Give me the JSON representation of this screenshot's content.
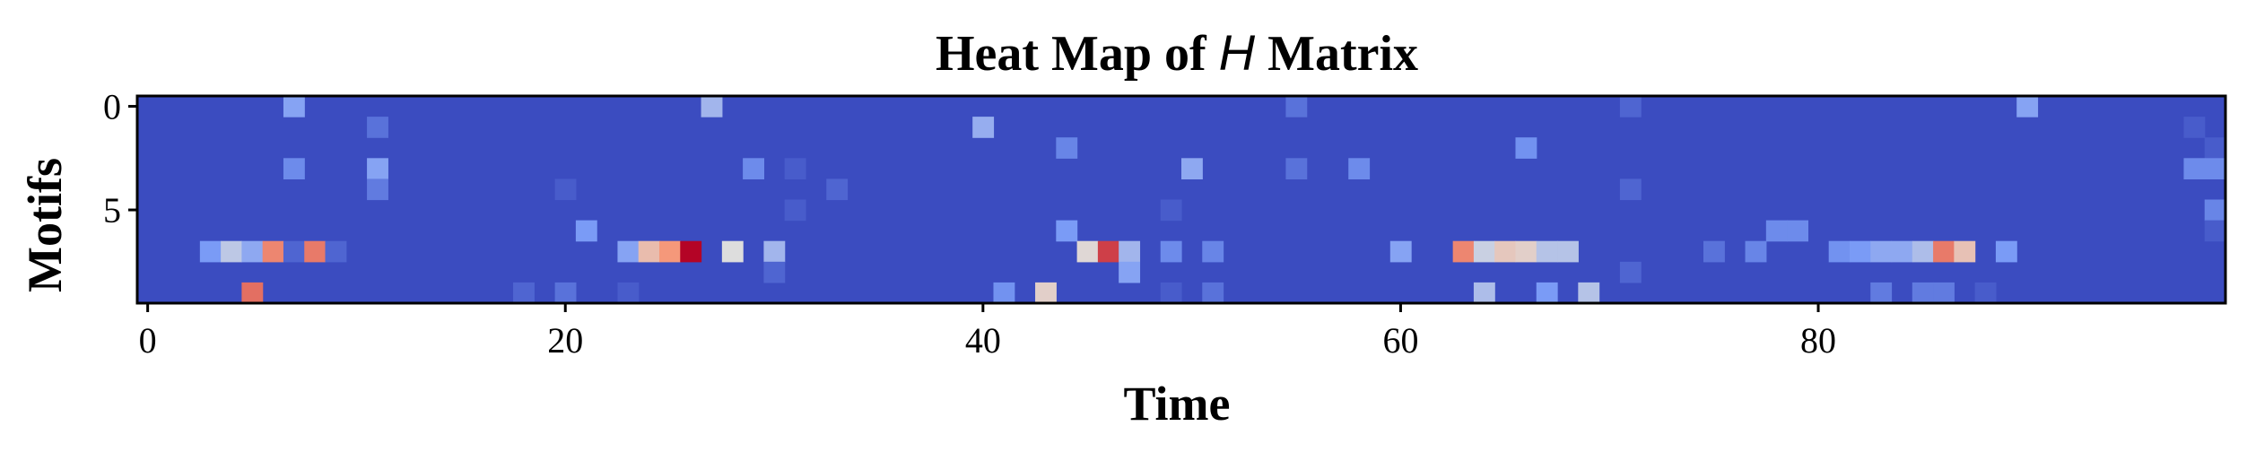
{
  "chart_data": {
    "type": "heatmap",
    "title_main": "Heat Map of ",
    "title_var": "H",
    "title_end": " Matrix",
    "xlabel": "Time",
    "ylabel": "Motifs",
    "colormap": "coolwarm",
    "colors": {
      "low": "#3b4cc0",
      "mid": "#dddddd",
      "high": "#b40426",
      "frame": "#000000",
      "background": "#ffffff"
    },
    "value_range": [
      0,
      1
    ],
    "n_cols": 100,
    "n_rows": 10,
    "x_ticks": [
      0,
      20,
      40,
      60,
      80
    ],
    "y_ticks": [
      0,
      5
    ],
    "grid": false,
    "cells": [
      [
        0,
        7,
        0.28
      ],
      [
        0,
        27,
        0.35
      ],
      [
        0,
        55,
        0.12
      ],
      [
        0,
        71,
        0.08
      ],
      [
        0,
        90,
        0.28
      ],
      [
        1,
        11,
        0.12
      ],
      [
        1,
        40,
        0.32
      ],
      [
        1,
        98,
        0.05
      ],
      [
        2,
        44,
        0.18
      ],
      [
        2,
        66,
        0.22
      ],
      [
        2,
        99,
        0.05
      ],
      [
        3,
        7,
        0.2
      ],
      [
        3,
        11,
        0.28
      ],
      [
        3,
        29,
        0.2
      ],
      [
        3,
        31,
        0.05
      ],
      [
        3,
        50,
        0.3
      ],
      [
        3,
        55,
        0.12
      ],
      [
        3,
        58,
        0.2
      ],
      [
        3,
        98,
        0.2
      ],
      [
        3,
        99,
        0.2
      ],
      [
        4,
        11,
        0.15
      ],
      [
        4,
        20,
        0.05
      ],
      [
        4,
        33,
        0.08
      ],
      [
        4,
        71,
        0.08
      ],
      [
        5,
        31,
        0.05
      ],
      [
        5,
        49,
        0.05
      ],
      [
        5,
        99,
        0.18
      ],
      [
        6,
        21,
        0.25
      ],
      [
        6,
        44,
        0.25
      ],
      [
        6,
        78,
        0.2
      ],
      [
        6,
        79,
        0.2
      ],
      [
        6,
        99,
        0.05
      ],
      [
        7,
        3,
        0.25
      ],
      [
        7,
        4,
        0.42
      ],
      [
        7,
        5,
        0.3
      ],
      [
        7,
        6,
        0.78
      ],
      [
        7,
        7,
        0.08
      ],
      [
        7,
        8,
        0.8
      ],
      [
        7,
        9,
        0.08
      ],
      [
        7,
        23,
        0.28
      ],
      [
        7,
        24,
        0.62
      ],
      [
        7,
        25,
        0.75
      ],
      [
        7,
        26,
        1.0
      ],
      [
        7,
        28,
        0.5
      ],
      [
        7,
        30,
        0.35
      ],
      [
        7,
        45,
        0.52
      ],
      [
        7,
        46,
        0.9
      ],
      [
        7,
        47,
        0.35
      ],
      [
        7,
        49,
        0.2
      ],
      [
        7,
        51,
        0.18
      ],
      [
        7,
        60,
        0.28
      ],
      [
        7,
        63,
        0.78
      ],
      [
        7,
        64,
        0.45
      ],
      [
        7,
        65,
        0.58
      ],
      [
        7,
        66,
        0.55
      ],
      [
        7,
        67,
        0.4
      ],
      [
        7,
        68,
        0.4
      ],
      [
        7,
        75,
        0.12
      ],
      [
        7,
        77,
        0.18
      ],
      [
        7,
        81,
        0.22
      ],
      [
        7,
        82,
        0.25
      ],
      [
        7,
        83,
        0.3
      ],
      [
        7,
        84,
        0.3
      ],
      [
        7,
        85,
        0.38
      ],
      [
        7,
        86,
        0.8
      ],
      [
        7,
        87,
        0.6
      ],
      [
        7,
        89,
        0.25
      ],
      [
        8,
        30,
        0.08
      ],
      [
        8,
        47,
        0.28
      ],
      [
        8,
        71,
        0.08
      ],
      [
        9,
        5,
        0.82
      ],
      [
        9,
        18,
        0.08
      ],
      [
        9,
        20,
        0.12
      ],
      [
        9,
        23,
        0.05
      ],
      [
        9,
        41,
        0.22
      ],
      [
        9,
        43,
        0.55
      ],
      [
        9,
        49,
        0.05
      ],
      [
        9,
        51,
        0.12
      ],
      [
        9,
        64,
        0.38
      ],
      [
        9,
        67,
        0.25
      ],
      [
        9,
        69,
        0.4
      ],
      [
        9,
        83,
        0.15
      ],
      [
        9,
        85,
        0.15
      ],
      [
        9,
        86,
        0.15
      ],
      [
        9,
        88,
        0.05
      ]
    ]
  }
}
